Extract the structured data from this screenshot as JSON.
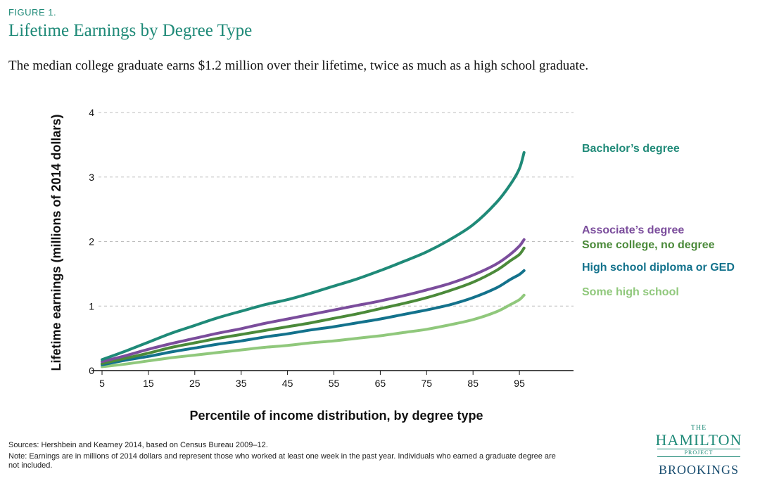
{
  "header": {
    "figure_label": "FIGURE 1.",
    "title": "Lifetime Earnings by Degree Type",
    "subtitle": "The median college graduate earns $1.2 million over their lifetime, twice as much as a high school graduate."
  },
  "footer": {
    "sources": "Sources: Hershbein and Kearney 2014, based on Census Bureau 2009–12.",
    "note": "Note: Earnings are in millions of 2014 dollars and represent those who worked at least one week in the past year. Individuals who earned a graduate degree are not included."
  },
  "logo": {
    "the": "THE",
    "hamilton": "HAMILTON",
    "project": "PROJECT",
    "brookings": "BROOKINGS"
  },
  "chart_data": {
    "type": "line",
    "xlabel": "Percentile of income distribution, by degree type",
    "ylabel": "Lifetime earnings (millions of 2014 dollars)",
    "xlim": [
      5,
      96
    ],
    "ylim": [
      0,
      4
    ],
    "xticks": [
      5,
      15,
      25,
      35,
      45,
      55,
      65,
      75,
      85,
      95
    ],
    "yticks": [
      0,
      1,
      2,
      3,
      4
    ],
    "grid": "horizontal dashed",
    "legend": "direct labels at right end of lines",
    "x": [
      5,
      10,
      15,
      20,
      25,
      30,
      35,
      40,
      45,
      50,
      55,
      60,
      65,
      70,
      75,
      80,
      85,
      90,
      93,
      95,
      96
    ],
    "series": [
      {
        "name": "Bachelor’s degree",
        "color": "#1f8a78",
        "values": [
          0.17,
          0.3,
          0.44,
          0.58,
          0.7,
          0.82,
          0.92,
          1.02,
          1.1,
          1.2,
          1.31,
          1.42,
          1.55,
          1.69,
          1.84,
          2.03,
          2.26,
          2.6,
          2.88,
          3.13,
          3.38
        ]
      },
      {
        "name": "Associate’s degree",
        "color": "#7b4d9c",
        "values": [
          0.14,
          0.23,
          0.33,
          0.42,
          0.5,
          0.58,
          0.65,
          0.73,
          0.8,
          0.87,
          0.94,
          1.01,
          1.08,
          1.16,
          1.25,
          1.35,
          1.48,
          1.65,
          1.8,
          1.93,
          2.03
        ]
      },
      {
        "name": "Some college, no degree",
        "color": "#4b8a3a",
        "values": [
          0.11,
          0.19,
          0.27,
          0.36,
          0.43,
          0.5,
          0.56,
          0.62,
          0.68,
          0.74,
          0.81,
          0.88,
          0.96,
          1.04,
          1.13,
          1.24,
          1.37,
          1.55,
          1.7,
          1.8,
          1.9
        ]
      },
      {
        "name": "High school diploma or GED",
        "color": "#13728c",
        "values": [
          0.09,
          0.16,
          0.22,
          0.29,
          0.35,
          0.41,
          0.46,
          0.52,
          0.57,
          0.63,
          0.68,
          0.74,
          0.8,
          0.87,
          0.94,
          1.02,
          1.13,
          1.28,
          1.41,
          1.49,
          1.55
        ]
      },
      {
        "name": "Some high school",
        "color": "#90c87c",
        "values": [
          0.06,
          0.1,
          0.15,
          0.2,
          0.24,
          0.28,
          0.32,
          0.36,
          0.39,
          0.43,
          0.46,
          0.5,
          0.54,
          0.59,
          0.64,
          0.71,
          0.79,
          0.91,
          1.02,
          1.1,
          1.17
        ]
      }
    ]
  }
}
